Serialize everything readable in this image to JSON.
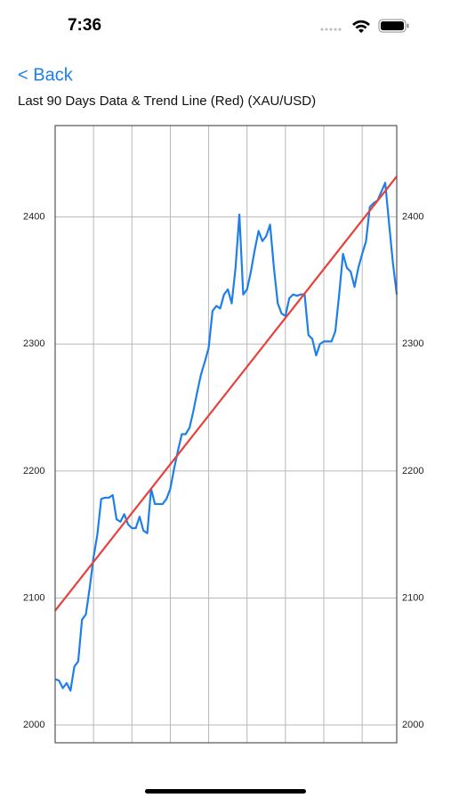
{
  "status_bar": {
    "time": "7:36"
  },
  "nav": {
    "back": "< Back"
  },
  "chart_data": {
    "type": "line",
    "title": "Last 90 Days Data & Trend Line (Red) (XAU/USD)",
    "xlim": [
      0,
      89
    ],
    "xticks": [
      10,
      20,
      30,
      40,
      50,
      60,
      70,
      80
    ],
    "ylim": [
      1986,
      2472
    ],
    "yticks": [
      2000,
      2100,
      2200,
      2300,
      2400
    ],
    "grid": true,
    "series": [
      {
        "color": "#1f7fe8",
        "x": [
          0,
          1,
          2,
          3,
          4,
          5,
          6,
          7,
          8,
          9,
          10,
          11,
          12,
          13,
          14,
          15,
          16,
          17,
          18,
          19,
          20,
          21,
          22,
          23,
          24,
          25,
          26,
          27,
          28,
          29,
          30,
          31,
          32,
          33,
          34,
          35,
          36,
          37,
          38,
          39,
          40,
          41,
          42,
          43,
          44,
          45,
          46,
          47,
          48,
          49,
          50,
          51,
          52,
          53,
          54,
          55,
          56,
          57,
          58,
          59,
          60,
          61,
          62,
          63,
          64,
          65,
          66,
          67,
          68,
          69,
          70,
          71,
          72,
          73,
          74,
          75,
          76,
          77,
          78,
          79,
          80,
          81,
          82,
          83,
          84,
          85,
          86,
          87,
          88,
          89
        ],
        "values": [
          2036,
          2035,
          2029,
          2033,
          2027,
          2046,
          2050,
          2083,
          2087,
          2108,
          2132,
          2150,
          2178,
          2179,
          2179,
          2181,
          2162,
          2160,
          2166,
          2158,
          2155,
          2155,
          2164,
          2153,
          2151,
          2186,
          2174,
          2174,
          2174,
          2178,
          2186,
          2202,
          2216,
          2229,
          2229,
          2234,
          2247,
          2262,
          2276,
          2286,
          2297,
          2326,
          2330,
          2328,
          2339,
          2343,
          2332,
          2360,
          2402,
          2339,
          2343,
          2357,
          2374,
          2389,
          2381,
          2385,
          2394,
          2360,
          2332,
          2324,
          2322,
          2336,
          2339,
          2338,
          2339,
          2339,
          2307,
          2304,
          2291,
          2300,
          2302,
          2302,
          2302,
          2310,
          2339,
          2371,
          2360,
          2357,
          2345,
          2360,
          2371,
          2381,
          2408,
          2411,
          2413,
          2420,
          2427,
          2395,
          2364,
          2339
        ]
      },
      {
        "color": "#e8403a",
        "x": [
          0,
          89
        ],
        "values": [
          2090,
          2432
        ]
      }
    ]
  }
}
